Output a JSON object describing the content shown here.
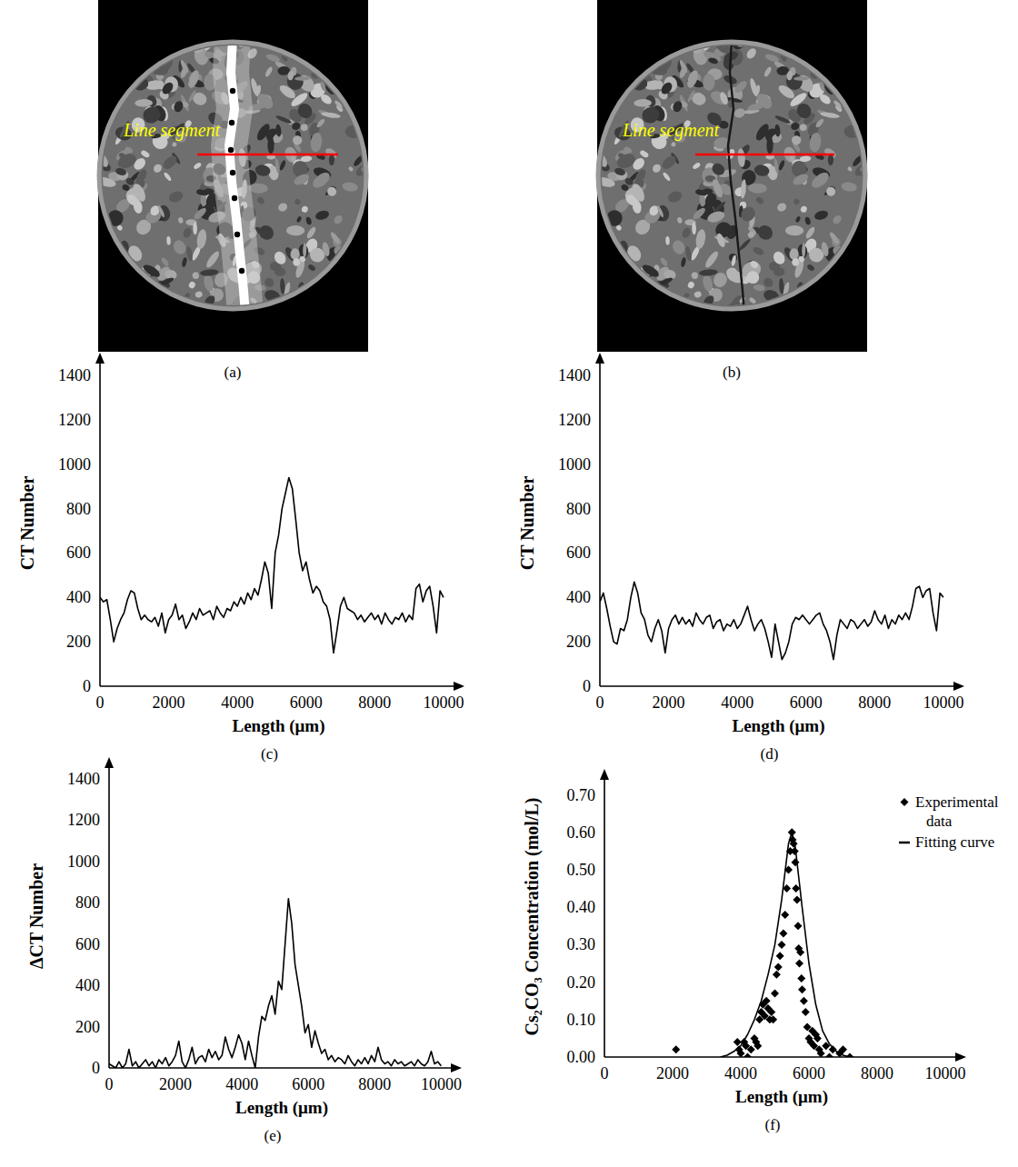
{
  "images": [
    {
      "label": "Line segment",
      "caption": "(a)"
    },
    {
      "label": "Line segment",
      "caption": "(b)"
    }
  ],
  "chart_data": [
    {
      "type": "line",
      "caption": "(c)",
      "x_label": "Length (μm)",
      "y_label": "CT Number",
      "color": "#000000",
      "xlim": [
        0,
        10400
      ],
      "ylim": [
        0,
        1470
      ],
      "xticks": [
        0,
        2000,
        4000,
        6000,
        8000,
        10000
      ],
      "yticks": [
        0,
        200,
        400,
        600,
        800,
        1000,
        1200,
        1400
      ],
      "x": [
        0,
        100,
        200,
        300,
        400,
        500,
        600,
        700,
        800,
        900,
        1000,
        1100,
        1200,
        1300,
        1400,
        1500,
        1600,
        1700,
        1800,
        1900,
        2000,
        2100,
        2200,
        2300,
        2400,
        2500,
        2600,
        2700,
        2800,
        2900,
        3000,
        3100,
        3200,
        3300,
        3400,
        3500,
        3600,
        3700,
        3800,
        3900,
        4000,
        4100,
        4200,
        4300,
        4400,
        4500,
        4600,
        4700,
        4800,
        4900,
        5000,
        5100,
        5200,
        5300,
        5400,
        5500,
        5600,
        5700,
        5800,
        5900,
        6000,
        6100,
        6200,
        6300,
        6400,
        6500,
        6600,
        6700,
        6800,
        6900,
        7000,
        7100,
        7200,
        7300,
        7400,
        7500,
        7600,
        7700,
        7800,
        7900,
        8000,
        8100,
        8200,
        8300,
        8400,
        8500,
        8600,
        8700,
        8800,
        8900,
        9000,
        9100,
        9200,
        9300,
        9400,
        9500,
        9600,
        9700,
        9800,
        9900,
        10000
      ],
      "values": [
        400,
        380,
        390,
        300,
        200,
        260,
        300,
        330,
        390,
        430,
        420,
        350,
        300,
        320,
        300,
        290,
        310,
        270,
        330,
        240,
        300,
        320,
        370,
        300,
        320,
        260,
        290,
        330,
        300,
        350,
        320,
        330,
        340,
        300,
        360,
        330,
        310,
        350,
        340,
        380,
        360,
        400,
        370,
        420,
        390,
        440,
        410,
        480,
        560,
        510,
        350,
        600,
        680,
        800,
        870,
        940,
        890,
        750,
        600,
        520,
        560,
        480,
        420,
        450,
        430,
        380,
        360,
        300,
        150,
        250,
        360,
        400,
        350,
        340,
        330,
        300,
        320,
        290,
        310,
        330,
        300,
        320,
        280,
        330,
        300,
        280,
        310,
        300,
        330,
        290,
        320,
        300,
        440,
        460,
        380,
        430,
        450,
        360,
        240,
        430,
        400
      ]
    },
    {
      "type": "line",
      "caption": "(d)",
      "x_label": "Length (μm)",
      "y_label": "CT Number",
      "color": "#000000",
      "xlim": [
        0,
        10400
      ],
      "ylim": [
        0,
        1470
      ],
      "xticks": [
        0,
        2000,
        4000,
        6000,
        8000,
        10000
      ],
      "yticks": [
        0,
        200,
        400,
        600,
        800,
        1000,
        1200,
        1400
      ],
      "x": [
        0,
        100,
        200,
        300,
        400,
        500,
        600,
        700,
        800,
        900,
        1000,
        1100,
        1200,
        1300,
        1400,
        1500,
        1600,
        1700,
        1800,
        1900,
        2000,
        2100,
        2200,
        2300,
        2400,
        2500,
        2600,
        2700,
        2800,
        2900,
        3000,
        3100,
        3200,
        3300,
        3400,
        3500,
        3600,
        3700,
        3800,
        3900,
        4000,
        4100,
        4200,
        4300,
        4400,
        4500,
        4600,
        4700,
        4800,
        4900,
        5000,
        5100,
        5200,
        5300,
        5400,
        5500,
        5600,
        5700,
        5800,
        5900,
        6000,
        6100,
        6200,
        6300,
        6400,
        6500,
        6600,
        6700,
        6800,
        6900,
        7000,
        7100,
        7200,
        7300,
        7400,
        7500,
        7600,
        7700,
        7800,
        7900,
        8000,
        8100,
        8200,
        8300,
        8400,
        8500,
        8600,
        8700,
        8800,
        8900,
        9000,
        9100,
        9200,
        9300,
        9400,
        9500,
        9600,
        9700,
        9800,
        9900,
        10000
      ],
      "values": [
        380,
        420,
        350,
        270,
        200,
        190,
        260,
        250,
        300,
        400,
        470,
        420,
        330,
        300,
        230,
        200,
        260,
        300,
        250,
        150,
        260,
        300,
        320,
        280,
        310,
        280,
        300,
        270,
        330,
        300,
        280,
        310,
        320,
        260,
        290,
        300,
        250,
        280,
        270,
        300,
        260,
        280,
        320,
        360,
        300,
        250,
        280,
        300,
        260,
        200,
        130,
        280,
        200,
        120,
        150,
        200,
        280,
        310,
        300,
        320,
        300,
        280,
        300,
        320,
        330,
        280,
        250,
        200,
        120,
        230,
        300,
        280,
        260,
        300,
        290,
        260,
        280,
        300,
        270,
        290,
        340,
        300,
        280,
        320,
        260,
        300,
        280,
        320,
        300,
        330,
        300,
        360,
        440,
        450,
        400,
        430,
        440,
        330,
        250,
        420,
        400
      ]
    },
    {
      "type": "line",
      "caption": "(e)",
      "x_label": "Length (μm)",
      "y_label": "ΔCT Number",
      "color": "#000000",
      "xlim": [
        0,
        10400
      ],
      "ylim": [
        0,
        1470
      ],
      "xticks": [
        0,
        2000,
        4000,
        6000,
        8000,
        10000
      ],
      "yticks": [
        0,
        200,
        400,
        600,
        800,
        1000,
        1200,
        1400
      ],
      "x": [
        0,
        100,
        200,
        300,
        400,
        500,
        600,
        700,
        800,
        900,
        1000,
        1100,
        1200,
        1300,
        1400,
        1500,
        1600,
        1700,
        1800,
        1900,
        2000,
        2100,
        2200,
        2300,
        2400,
        2500,
        2600,
        2700,
        2800,
        2900,
        3000,
        3100,
        3200,
        3300,
        3400,
        3500,
        3600,
        3700,
        3800,
        3900,
        4000,
        4100,
        4200,
        4300,
        4400,
        4500,
        4600,
        4700,
        4800,
        4900,
        5000,
        5100,
        5200,
        5300,
        5400,
        5500,
        5600,
        5700,
        5800,
        5900,
        6000,
        6100,
        6200,
        6300,
        6400,
        6500,
        6600,
        6700,
        6800,
        6900,
        7000,
        7100,
        7200,
        7300,
        7400,
        7500,
        7600,
        7700,
        7800,
        7900,
        8000,
        8100,
        8200,
        8300,
        8400,
        8500,
        8600,
        8700,
        8800,
        8900,
        9000,
        9100,
        9200,
        9300,
        9400,
        9500,
        9600,
        9700,
        9800,
        9900,
        10000
      ],
      "values": [
        20,
        10,
        0,
        30,
        0,
        20,
        90,
        10,
        30,
        0,
        20,
        40,
        10,
        30,
        0,
        40,
        20,
        50,
        10,
        30,
        60,
        130,
        30,
        0,
        40,
        100,
        20,
        50,
        60,
        30,
        90,
        50,
        80,
        40,
        60,
        150,
        90,
        50,
        100,
        160,
        120,
        40,
        130,
        60,
        0,
        150,
        250,
        230,
        300,
        350,
        260,
        420,
        380,
        600,
        820,
        700,
        500,
        400,
        300,
        170,
        210,
        100,
        180,
        120,
        70,
        90,
        40,
        60,
        30,
        50,
        40,
        20,
        60,
        30,
        10,
        40,
        20,
        50,
        20,
        60,
        30,
        100,
        40,
        20,
        30,
        10,
        40,
        20,
        30,
        10,
        20,
        30,
        10,
        40,
        20,
        10,
        30,
        80,
        20,
        30,
        10
      ]
    },
    {
      "type": "scatter",
      "caption": "(f)",
      "x_label": "Length (μm)",
      "y_label": "Cs₂CO₃ Concentration (mol/L)",
      "xlim": [
        0,
        10400
      ],
      "ylim": [
        0,
        0.75
      ],
      "xticks": [
        0,
        2000,
        4000,
        6000,
        8000,
        10000
      ],
      "yticks": [
        {
          "value": 0,
          "label": "0.00"
        },
        {
          "value": 0.1,
          "label": "0.10"
        },
        {
          "value": 0.2,
          "label": "0.20"
        },
        {
          "value": 0.3,
          "label": "0.30"
        },
        {
          "value": 0.4,
          "label": "0.40"
        },
        {
          "value": 0.5,
          "label": "0.50"
        },
        {
          "value": 0.6,
          "label": "0.60"
        },
        {
          "value": 0.7,
          "label": "0.70"
        }
      ],
      "legend": "top-right",
      "series": [
        {
          "name": "Experimental data",
          "type": "scatter",
          "marker": "diamond",
          "color": "#000000",
          "x": [
            2100,
            3900,
            3950,
            4000,
            4100,
            4150,
            4200,
            4300,
            4400,
            4450,
            4500,
            4550,
            4600,
            4650,
            4700,
            4750,
            4800,
            4850,
            4900,
            4950,
            5000,
            5050,
            5100,
            5150,
            5200,
            5250,
            5300,
            5350,
            5400,
            5450,
            5500,
            5520,
            5550,
            5580,
            5600,
            5620,
            5650,
            5680,
            5700,
            5720,
            5750,
            5780,
            5800,
            5850,
            5900,
            5950,
            6000,
            6050,
            6100,
            6150,
            6200,
            6250,
            6300,
            6350,
            6500,
            6600,
            6700,
            6900,
            7000,
            7200
          ],
          "values": [
            0.02,
            0.04,
            0.02,
            0.01,
            0.04,
            0.03,
            0,
            0.02,
            0.05,
            0.04,
            0.03,
            0.1,
            0.12,
            0.14,
            0.11,
            0.15,
            0.13,
            0.1,
            0.12,
            0.1,
            0.17,
            0.22,
            0.24,
            0.27,
            0.3,
            0.33,
            0.38,
            0.45,
            0.5,
            0.55,
            0.6,
            0.58,
            0.57,
            0.55,
            0.52,
            0.45,
            0.42,
            0.35,
            0.29,
            0.25,
            0.28,
            0.21,
            0.18,
            0.15,
            0.12,
            0.08,
            0.05,
            0.04,
            0.07,
            0.03,
            0.06,
            0.05,
            0.02,
            0.01,
            0.03,
            0,
            0.02,
            0.01,
            0.02,
            0
          ]
        },
        {
          "name": "Fitting curve",
          "type": "line",
          "line_style": "solid",
          "color": "#000000",
          "x": [
            3400,
            3600,
            3800,
            4000,
            4200,
            4400,
            4600,
            4800,
            5000,
            5200,
            5400,
            5500,
            5600,
            5800,
            6000,
            6200,
            6400,
            6600,
            6800,
            7000,
            7200
          ],
          "values": [
            0,
            0.005,
            0.015,
            0.03,
            0.06,
            0.1,
            0.15,
            0.22,
            0.3,
            0.42,
            0.57,
            0.6,
            0.56,
            0.4,
            0.25,
            0.14,
            0.07,
            0.035,
            0.015,
            0.005,
            0
          ]
        }
      ]
    }
  ]
}
